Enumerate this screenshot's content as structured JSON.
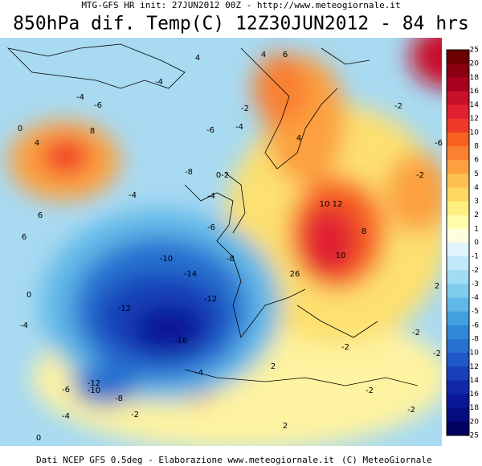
{
  "header": {
    "subtitle": "MTG-GFS HR init: 27JUN2012 00Z - http://www.meteogiornale.it",
    "title": "850hPa dif. Temp(C) 12Z30JUN2012 - 84 hrs"
  },
  "footer": {
    "source": "Dati NCEP GFS 0.5deg - Elaborazione www.meteogiornale.it",
    "copyright": "(C) MeteoGiornale"
  },
  "colorbar": {
    "levels": [
      "25",
      "20",
      "18",
      "16",
      "14",
      "12",
      "10",
      "8",
      "6",
      "5",
      "4",
      "3",
      "2",
      "1",
      "0",
      "-1",
      "-2",
      "-3",
      "-4",
      "-5",
      "-6",
      "-8",
      "-10",
      "-12",
      "-14",
      "-16",
      "-18",
      "-20",
      "-25"
    ],
    "colors": [
      "#6b0000",
      "#8b0010",
      "#a80020",
      "#c8102a",
      "#e02030",
      "#f03828",
      "#f86020",
      "#fb8030",
      "#fca040",
      "#fdc050",
      "#fdd860",
      "#fef080",
      "#fefca8",
      "#fffde0",
      "#e0f4fc",
      "#c0e8f8",
      "#a0dcf4",
      "#80ccee",
      "#60b8e8",
      "#40a0e0",
      "#3088d8",
      "#2870d0",
      "#2058c8",
      "#1840b8",
      "#1028a8",
      "#081898",
      "#040c80",
      "#000060"
    ]
  },
  "map_labels": [
    "4",
    "-4",
    "4",
    "6",
    "-4",
    "-6",
    "8",
    "0",
    "4",
    "-2",
    "-6",
    "-4",
    "4",
    "-8",
    "0-2",
    "-4",
    "-4",
    "6",
    "6",
    "-6",
    "10",
    "12",
    "8",
    "-10",
    "-8",
    "-14",
    "10",
    "26",
    "-12",
    "-12",
    "0",
    "-4",
    "-16",
    "-12",
    "-10",
    "-8",
    "-6",
    "-4",
    "2",
    "-4",
    "-2",
    "2",
    "-2",
    "-2",
    "-2",
    "0",
    "-2",
    "-2",
    "-6",
    "2",
    "-2",
    "-2"
  ]
}
